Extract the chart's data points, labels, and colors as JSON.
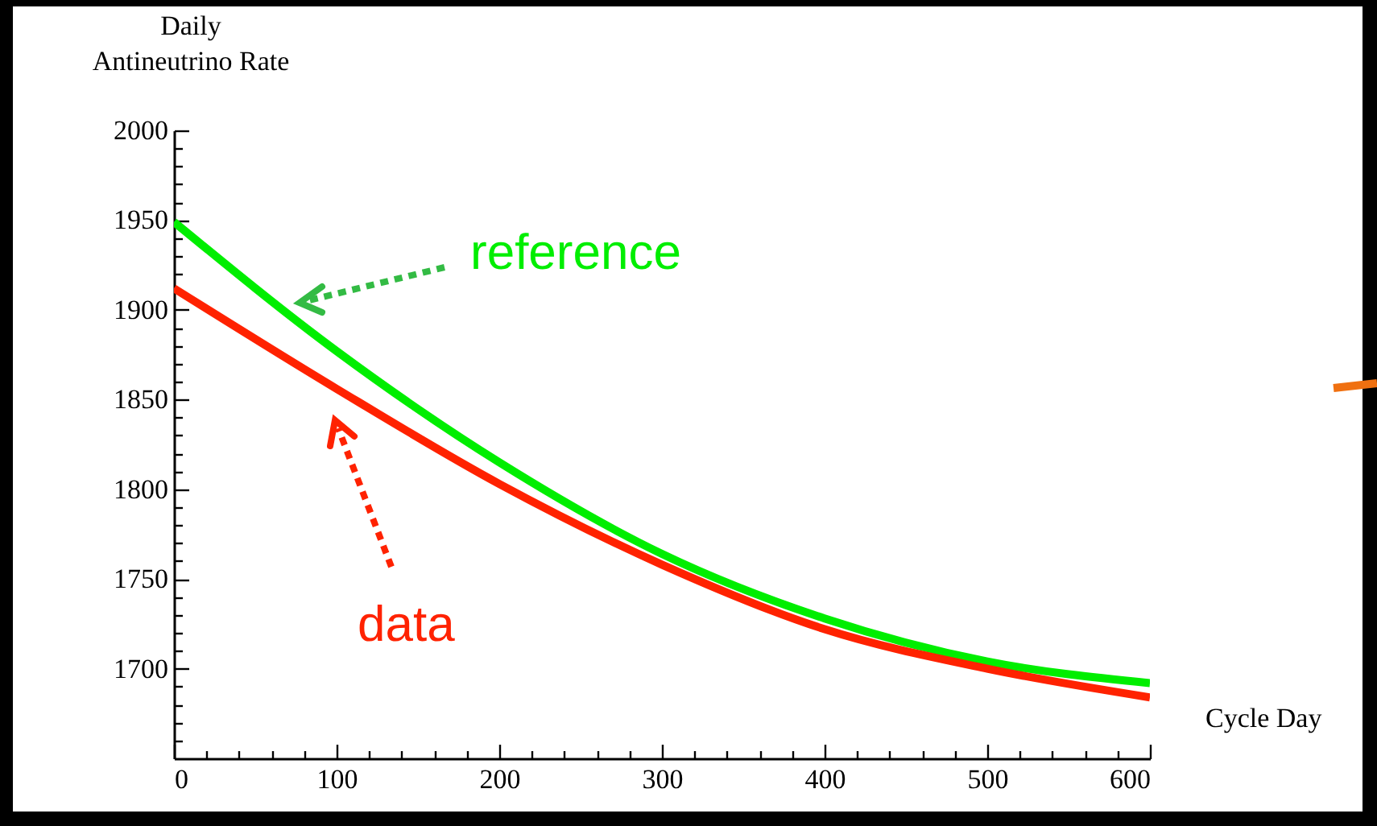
{
  "chart_data": {
    "type": "line",
    "xlabel": "Cycle Day",
    "ylabel": "Daily Antineutrino Rate",
    "xlim": [
      0,
      600
    ],
    "ylim": [
      1650,
      2000
    ],
    "xticks": [
      0,
      {
        "value": 20,
        "label": null
      },
      {
        "value": 40,
        "label": null
      },
      {
        "value": 60,
        "label": null
      },
      {
        "value": 80,
        "label": null
      },
      100,
      {
        "value": 120,
        "label": null
      },
      {
        "value": 140,
        "label": null
      },
      {
        "value": 160,
        "label": null
      },
      {
        "value": 180,
        "label": null
      },
      200,
      {
        "value": 220,
        "label": null
      },
      {
        "value": 240,
        "label": null
      },
      {
        "value": 260,
        "label": null
      },
      {
        "value": 280,
        "label": null
      },
      300,
      {
        "value": 320,
        "label": null
      },
      {
        "value": 340,
        "label": null
      },
      {
        "value": 360,
        "label": null
      },
      {
        "value": 380,
        "label": null
      },
      400,
      {
        "value": 420,
        "label": null
      },
      {
        "value": 440,
        "label": null
      },
      {
        "value": 460,
        "label": null
      },
      {
        "value": 480,
        "label": null
      },
      500,
      {
        "value": 520,
        "label": null
      },
      {
        "value": 540,
        "label": null
      },
      {
        "value": 560,
        "label": null
      },
      {
        "value": 580,
        "label": null
      },
      600
    ],
    "yticks": [
      {
        "value": 1660,
        "label": null
      },
      {
        "value": 1670,
        "label": null
      },
      {
        "value": 1680,
        "label": null
      },
      {
        "value": 1690,
        "label": null
      },
      1700,
      {
        "value": 1710,
        "label": null
      },
      {
        "value": 1720,
        "label": null
      },
      {
        "value": 1730,
        "label": null
      },
      {
        "value": 1740,
        "label": null
      },
      1750,
      {
        "value": 1760,
        "label": null
      },
      {
        "value": 1770,
        "label": null
      },
      {
        "value": 1780,
        "label": null
      },
      {
        "value": 1790,
        "label": null
      },
      1800,
      {
        "value": 1810,
        "label": null
      },
      {
        "value": 1820,
        "label": null
      },
      {
        "value": 1830,
        "label": null
      },
      {
        "value": 1840,
        "label": null
      },
      1850,
      {
        "value": 1860,
        "label": null
      },
      {
        "value": 1870,
        "label": null
      },
      {
        "value": 1880,
        "label": null
      },
      {
        "value": 1890,
        "label": null
      },
      1900,
      {
        "value": 1910,
        "label": null
      },
      {
        "value": 1920,
        "label": null
      },
      {
        "value": 1930,
        "label": null
      },
      {
        "value": 1940,
        "label": null
      },
      1950,
      {
        "value": 1960,
        "label": null
      },
      {
        "value": 1970,
        "label": null
      },
      {
        "value": 1980,
        "label": null
      },
      {
        "value": 1990,
        "label": null
      },
      2000
    ],
    "x": [
      0,
      100,
      200,
      300,
      400,
      500,
      600
    ],
    "series": [
      {
        "name": "reference",
        "color": "#00ee00",
        "values": [
          1949,
          1877,
          1815,
          1764,
          1728,
          1704,
          1692
        ]
      },
      {
        "name": "data",
        "color": "#ff2200",
        "values": [
          1912,
          1856,
          1803,
          1758,
          1722,
          1700,
          1684
        ]
      }
    ]
  }
}
